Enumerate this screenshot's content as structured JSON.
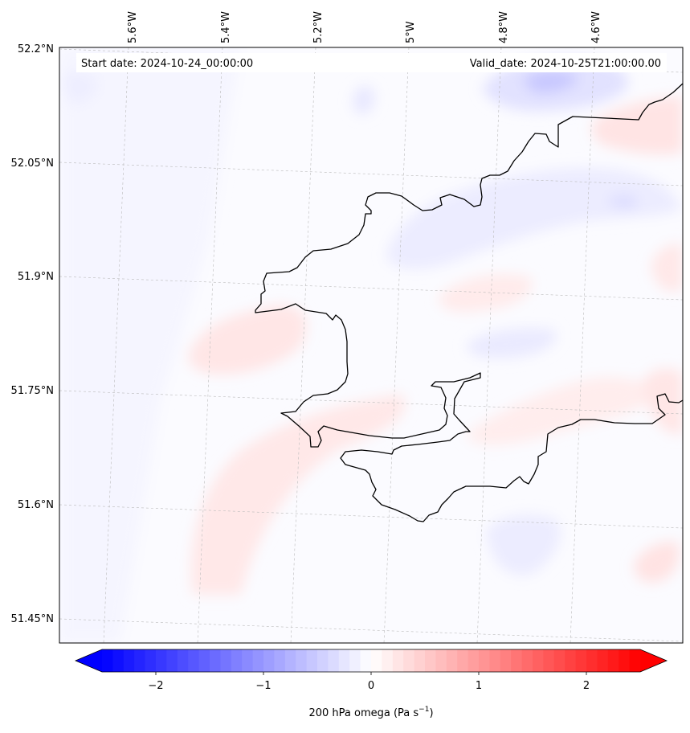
{
  "map": {
    "start_date": "Start date: 2024-10-24_00:00:00",
    "valid_date": "Valid_date: 2024-10-25T21:00:00.00",
    "lon_labels": [
      "5.6°W",
      "5.4°W",
      "5.2°W",
      "5°W",
      "4.8°W",
      "4.6°W"
    ],
    "lat_labels": [
      "52.2°N",
      "52.05°N",
      "51.9°N",
      "51.75°N",
      "51.6°N",
      "51.45°N"
    ],
    "coastline_color": "#000000",
    "gridline_color": "#bbbbbb",
    "field": "200 hPa omega",
    "colormap": "bwr"
  },
  "colorbar": {
    "label_main": "200 hPa omega (Pa s",
    "label_sup": "−1",
    "label_end": ")",
    "ticks": [
      "−2",
      "−1",
      "0",
      "1",
      "2"
    ],
    "tick_values": [
      -2,
      -1,
      0,
      1,
      2
    ],
    "range": [
      -2.5,
      2.5
    ],
    "extend": "both",
    "min_color": "#0000ff",
    "mid_color": "#ffffff",
    "max_color": "#ff0000"
  }
}
